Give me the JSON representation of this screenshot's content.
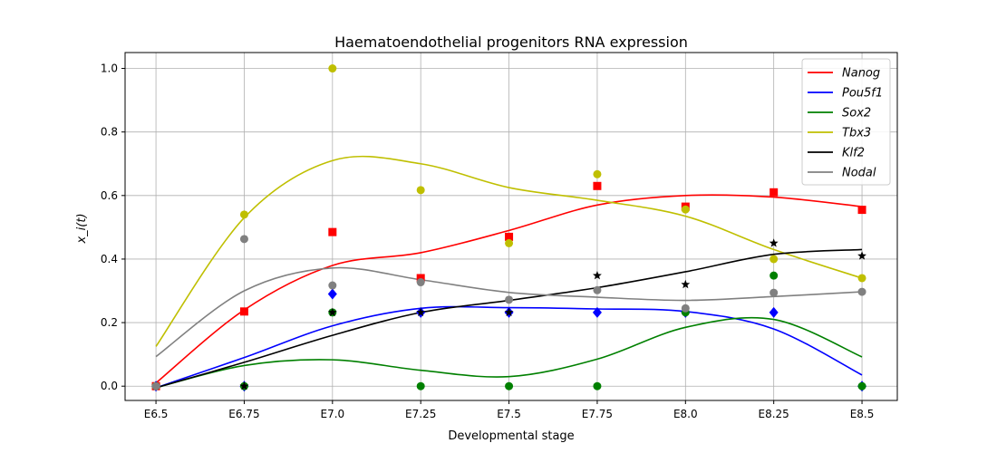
{
  "chart_data": {
    "type": "scatter",
    "title": "Haematoendothelial progenitors RNA expression",
    "xlabel": "Developmental stage",
    "ylabel": "x_i(t)",
    "categories": [
      "E6.5",
      "E6.75",
      "E7.0",
      "E7.25",
      "E7.5",
      "E7.75",
      "E8.0",
      "E8.25",
      "E8.5"
    ],
    "xlim": [
      -0.35,
      8.4
    ],
    "ylim": [
      -0.045,
      1.05
    ],
    "yticks": [
      "0.0",
      "0.2",
      "0.4",
      "0.6",
      "0.8",
      "1.0"
    ],
    "grid": true,
    "legend_position": "top-right",
    "series": [
      {
        "name": "Nanog",
        "color": "#ff0000",
        "marker": "square",
        "points": [
          0.0,
          0.235,
          0.485,
          0.34,
          0.47,
          0.63,
          0.565,
          0.61,
          0.555
        ],
        "curve": [
          0.01,
          0.24,
          0.38,
          0.42,
          0.49,
          0.57,
          0.6,
          0.595,
          0.565
        ]
      },
      {
        "name": "Pou5f1",
        "color": "#0000ff",
        "marker": "diamond",
        "points": [
          0.0,
          0.0,
          0.29,
          0.232,
          0.232,
          0.232,
          0.232,
          0.232,
          0.0
        ],
        "curve": [
          -0.005,
          0.09,
          0.19,
          0.245,
          0.247,
          0.243,
          0.235,
          0.18,
          0.035
        ]
      },
      {
        "name": "Sox2",
        "color": "#008000",
        "marker": "circle",
        "points": [
          0.0,
          0.0,
          0.232,
          0.0,
          0.0,
          0.0,
          0.232,
          0.348,
          0.0
        ],
        "curve": [
          -0.005,
          0.065,
          0.083,
          0.05,
          0.03,
          0.085,
          0.185,
          0.21,
          0.092
        ]
      },
      {
        "name": "Tbx3",
        "color": "#bfbf00",
        "marker": "circle",
        "points": [
          0.0,
          0.54,
          1.0,
          0.617,
          0.45,
          0.667,
          0.556,
          0.4,
          0.34
        ],
        "curve": [
          0.125,
          0.53,
          0.71,
          0.7,
          0.625,
          0.585,
          0.535,
          0.43,
          0.34
        ]
      },
      {
        "name": "Klf2",
        "color": "#000000",
        "marker": "star",
        "points": [
          0.0,
          0.0,
          0.232,
          0.232,
          0.232,
          0.348,
          0.32,
          0.45,
          0.41
        ],
        "curve": [
          -0.005,
          0.075,
          0.16,
          0.232,
          0.27,
          0.31,
          0.36,
          0.415,
          0.43
        ]
      },
      {
        "name": "Nodal",
        "color": "#808080",
        "marker": "circle",
        "points": [
          0.0,
          0.463,
          0.317,
          0.327,
          0.272,
          0.302,
          0.245,
          0.294,
          0.297
        ],
        "curve": [
          0.093,
          0.3,
          0.372,
          0.335,
          0.295,
          0.28,
          0.27,
          0.282,
          0.297
        ]
      }
    ]
  }
}
